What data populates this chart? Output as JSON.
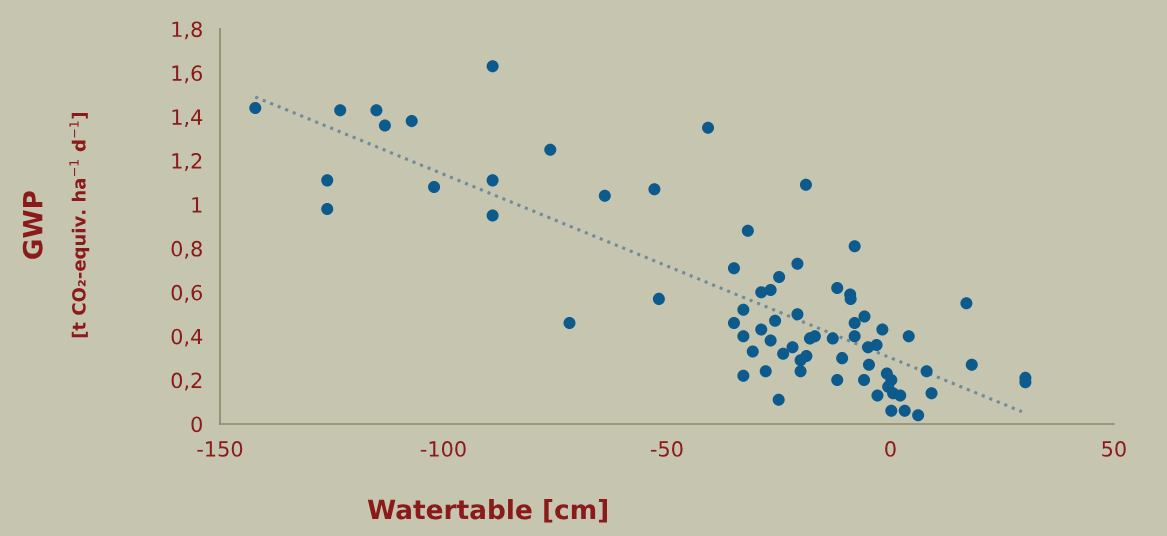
{
  "chart_data": {
    "type": "scatter",
    "xlabel": "Watertable [cm]",
    "ylabel": "GWP\n[t CO₂-equiv. ha$^{−1}$ d$^{−1}$]",
    "xlim": [
      -150,
      50
    ],
    "xticks": [
      -150,
      -100,
      -50,
      0,
      50
    ],
    "ylim": [
      0,
      1.8
    ],
    "yticks": [
      0,
      {
        "value": 0.2,
        "label": "0,2"
      },
      {
        "value": 0.4,
        "label": "0,4"
      },
      {
        "value": 0.6,
        "label": "0,6"
      },
      {
        "value": 0.8,
        "label": "0,8"
      },
      1,
      {
        "value": 1.2,
        "label": "1,2"
      },
      {
        "value": 1.4,
        "label": "1,4"
      },
      {
        "value": 1.6,
        "label": "1,6"
      },
      {
        "value": 1.8,
        "label": "1,8"
      }
    ],
    "grid": false,
    "legend": false,
    "marker": "circle",
    "series": [
      {
        "color": "#0d5a8c",
        "x": [
          -142.1,
          -123.1,
          -115,
          -113.1,
          -107.1,
          -89,
          -76.1,
          -126,
          -126,
          -102.1,
          -89,
          -89,
          -63.9,
          -71.8,
          -52.8,
          -40.8,
          -18.9,
          -51.8,
          -31.9,
          -8,
          -35,
          -20.8,
          -24.9,
          -28.9,
          -26.8,
          -11.9,
          -9,
          -8.9,
          17,
          -32.9,
          -20.8,
          -5.8,
          -8,
          -35,
          -25.8,
          -1.8,
          4.1,
          -28.9,
          -32.9,
          -26.8,
          -18,
          -16.9,
          -12.9,
          -8,
          -5,
          -3.1,
          -30.8,
          -21.9,
          -24,
          -18.8,
          -20.1,
          -10.8,
          -4.8,
          8.1,
          18.2,
          -0.8,
          0.2,
          30.2,
          30.2,
          -32.9,
          -27.9,
          -20.1,
          -11.9,
          -5.9,
          -0.5,
          0.6,
          2.2,
          -2.9,
          9.2,
          -25,
          0.2,
          3.2,
          6.2
        ],
        "values": [
          1.44,
          1.43,
          1.43,
          1.36,
          1.38,
          1.63,
          1.25,
          1.11,
          0.98,
          1.08,
          1.11,
          0.95,
          1.04,
          0.46,
          1.07,
          1.35,
          1.09,
          0.57,
          0.88,
          0.81,
          0.71,
          0.73,
          0.67,
          0.6,
          0.61,
          0.62,
          0.59,
          0.57,
          0.55,
          0.52,
          0.5,
          0.49,
          0.46,
          0.46,
          0.47,
          0.43,
          0.4,
          0.43,
          0.4,
          0.38,
          0.39,
          0.4,
          0.39,
          0.4,
          0.35,
          0.36,
          0.33,
          0.35,
          0.32,
          0.31,
          0.29,
          0.3,
          0.27,
          0.24,
          0.27,
          0.23,
          0.2,
          0.21,
          0.19,
          0.22,
          0.24,
          0.24,
          0.2,
          0.2,
          0.17,
          0.14,
          0.13,
          0.13,
          0.14,
          0.11,
          0.06,
          0.06,
          0.04
        ]
      },
      {
        "type": "line",
        "color": "#6f8a9a",
        "line_style": "dotted",
        "marker": "none",
        "x": [
          -142.1,
          29.4
        ],
        "values": [
          1.49,
          0.056
        ]
      }
    ]
  }
}
